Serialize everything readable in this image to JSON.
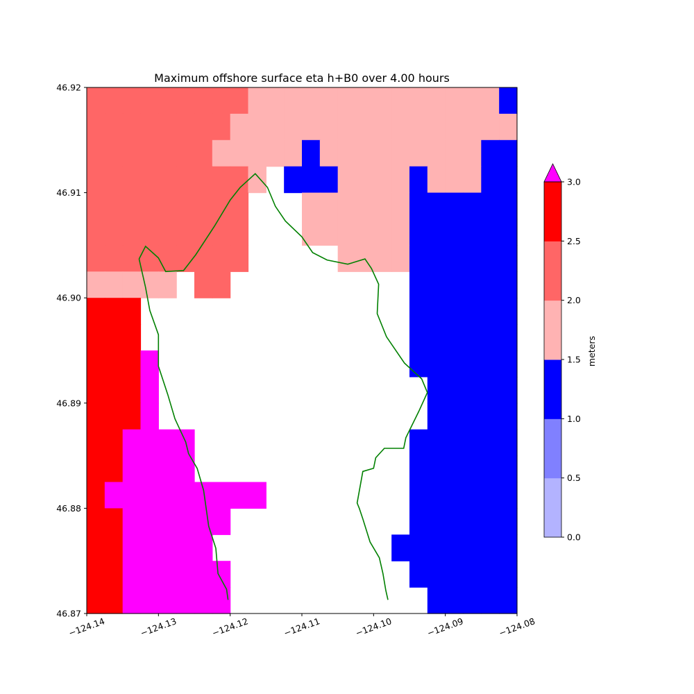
{
  "chart_data": {
    "type": "heatmap",
    "title": "Maximum offshore surface eta h+B0 over 4.00 hours",
    "xlim": [
      -124.14,
      -124.08
    ],
    "ylim": [
      46.87,
      46.92
    ],
    "xticks": [
      "−124.14",
      "−124.13",
      "−124.12",
      "−124.11",
      "−124.10",
      "−124.09",
      "−124.08"
    ],
    "yticks": [
      "46.87",
      "46.88",
      "46.89",
      "46.90",
      "46.91",
      "46.92"
    ],
    "grid": false,
    "colorbar": {
      "label": "meters",
      "levels": [
        0.0,
        0.5,
        1.0,
        1.5,
        2.0,
        2.5,
        3.0
      ],
      "tick_labels": [
        "0.0",
        "0.5",
        "1.0",
        "1.5",
        "2.0",
        "2.5",
        "3.0"
      ],
      "colors": [
        "#b3b3ff",
        "#8080ff",
        "#0000ff",
        "#ffb3b3",
        "#ff6666",
        "#ff0000"
      ],
      "extend_max_color": "#ff00ff"
    },
    "grid_shape": {
      "cols": 24,
      "rows": 20
    },
    "cell_colors": {
      "A": "#ff6666",
      "P": "#ffb3b3",
      "B": "#0000ff",
      "R": "#ff0000",
      "M": "#ff00ff",
      ".": null
    },
    "cell_levels_note": "rows listed from top (46.92) to bottom (46.87); A=2.0-2.5, P=1.5-2.0, B=1.0-1.5, R=2.5-3.0, M=>3.0, .=dry",
    "cells": [
      "AAAAAAAAAPPPPPPPPPPPPPPB",
      "AAAAAAAAPPPPPPPPPPPPPPPP",
      "AAAAAAAPPPPPBPPPPPPPPPBB",
      "AAAAAAAAAP.BBBPPPPBPPPBB",
      "AAAAAAAAA...PPPPPPBBBBBB",
      "AAAAAAAAA...PPPPPPBBBBBB",
      "AAAAAAAAA.....PPPPBBBBBB",
      "PPPPP.AA..........BBBBBB",
      "RRR...............BBBBBB",
      "RRR...............BBBBBB",
      "RRRM..............BBBBBB",
      "RRRM...............BBBBB",
      "RRRM...............BBBBB",
      "RRMMMM............BBBBBB",
      "RRMMMM............BBBBBB",
      "RMMMMMMMMM........BBBBBB",
      "RRMMMMMM..........BBBBBB",
      "RRMMMMM..........BBBBBBB",
      "RRMMMMMM..........BBBBBB",
      "RRMMMMMM...........BBBBB"
    ],
    "coastline": [
      [
        -124.1327,
        46.9037
      ],
      [
        -124.1318,
        46.9049
      ],
      [
        -124.13,
        46.9038
      ],
      [
        -124.129,
        46.9025
      ],
      [
        -124.1265,
        46.9026
      ],
      [
        -124.1248,
        46.9041
      ],
      [
        -124.1222,
        46.9068
      ],
      [
        -124.12,
        46.9093
      ],
      [
        -124.1186,
        46.9105
      ],
      [
        -124.1165,
        46.9118
      ],
      [
        -124.1148,
        46.9105
      ],
      [
        -124.1137,
        46.9087
      ],
      [
        -124.1123,
        46.9073
      ],
      [
        -124.11,
        46.9058
      ],
      [
        -124.1085,
        46.9043
      ],
      [
        -124.1065,
        46.9036
      ],
      [
        -124.1036,
        46.9032
      ],
      [
        -124.1012,
        46.9037
      ],
      [
        -124.1003,
        46.9028
      ],
      [
        -124.0993,
        46.9013
      ],
      [
        -124.0995,
        46.8985
      ],
      [
        -124.0982,
        46.8963
      ],
      [
        -124.0957,
        46.8938
      ],
      [
        -124.0933,
        46.8923
      ],
      [
        -124.0925,
        46.891
      ],
      [
        -124.0937,
        46.8892
      ],
      [
        -124.0955,
        46.8867
      ],
      [
        -124.0958,
        46.8857
      ],
      [
        -124.0985,
        46.8857
      ],
      [
        -124.0997,
        46.8848
      ],
      [
        -124.1,
        46.8838
      ],
      [
        -124.1015,
        46.8835
      ],
      [
        -124.1023,
        46.8805
      ],
      [
        -124.102,
        46.88
      ],
      [
        -124.1015,
        46.879
      ],
      [
        -124.1005,
        46.8768
      ],
      [
        -124.0992,
        46.8753
      ],
      [
        -124.0987,
        46.8738
      ],
      [
        -124.0983,
        46.8722
      ],
      [
        -124.098,
        46.8713
      ]
    ],
    "coastline_west": [
      [
        -124.1327,
        46.9037
      ],
      [
        -124.1318,
        46.901
      ],
      [
        -124.1312,
        46.8988
      ],
      [
        -124.13,
        46.8965
      ],
      [
        -124.13,
        46.8935
      ],
      [
        -124.1287,
        46.8908
      ],
      [
        -124.1277,
        46.8885
      ],
      [
        -124.1262,
        46.8863
      ],
      [
        -124.1258,
        46.8852
      ],
      [
        -124.1246,
        46.8838
      ],
      [
        -124.1237,
        46.8817
      ],
      [
        -124.123,
        46.8783
      ],
      [
        -124.122,
        46.8762
      ],
      [
        -124.1217,
        46.8738
      ],
      [
        -124.1205,
        46.8723
      ],
      [
        -124.1203,
        46.8713
      ]
    ],
    "coastline_color": "#008000"
  }
}
